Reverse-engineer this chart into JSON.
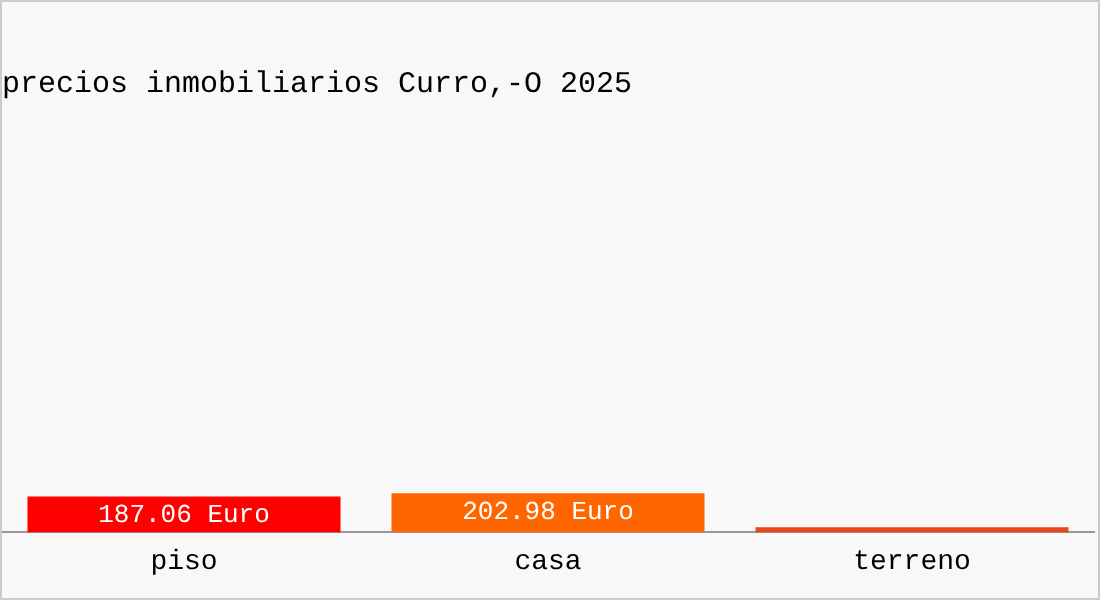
{
  "chart_data": {
    "type": "bar",
    "title": "precios inmobiliarios Curro,-O 2025",
    "categories": [
      "piso",
      "casa",
      "terreno"
    ],
    "values": [
      187.06,
      202.98,
      27
    ],
    "colors": [
      "#ff0000",
      "#ff6600",
      "#e8461c"
    ],
    "value_labels": [
      "187.06 Euro",
      "202.98 Euro",
      null
    ],
    "grid": false,
    "legend": false
  }
}
